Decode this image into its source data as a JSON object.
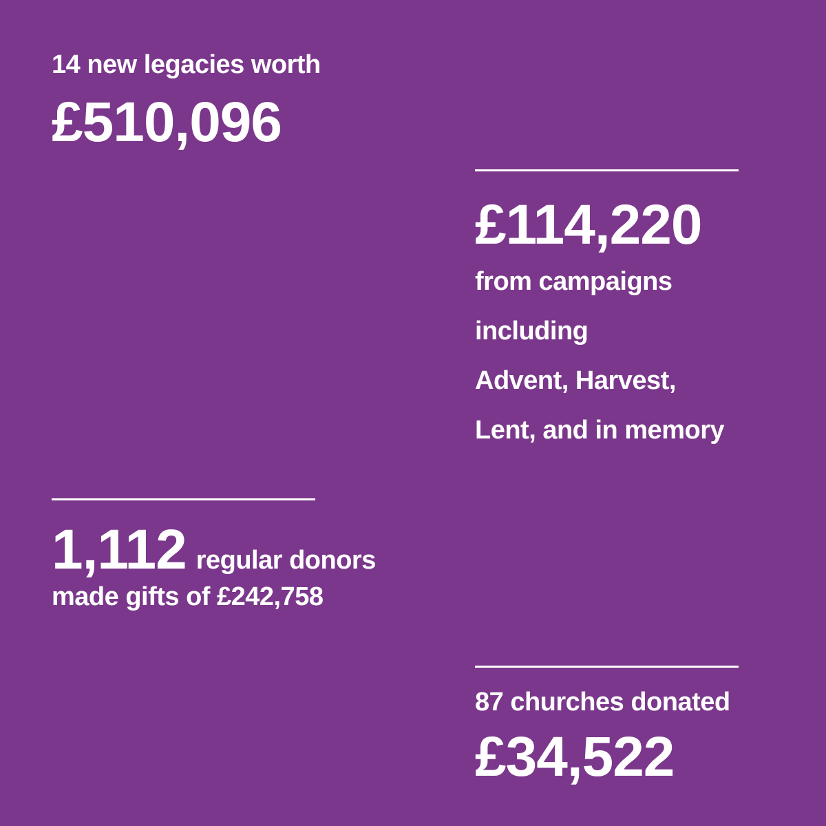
{
  "colors": {
    "background": "#7a378b",
    "text": "#ffffff"
  },
  "legacies": {
    "caption": "14 new legacies worth",
    "amount": "£510,096"
  },
  "campaigns": {
    "amount": "£114,220",
    "lines": [
      "from campaigns",
      "including",
      "Advent, Harvest,",
      "Lent, and in memory"
    ]
  },
  "donors": {
    "count": "1,112",
    "caption": "regular donors",
    "subline": "made gifts of £242,758"
  },
  "churches": {
    "caption": "87 churches donated",
    "amount": "£34,522"
  }
}
